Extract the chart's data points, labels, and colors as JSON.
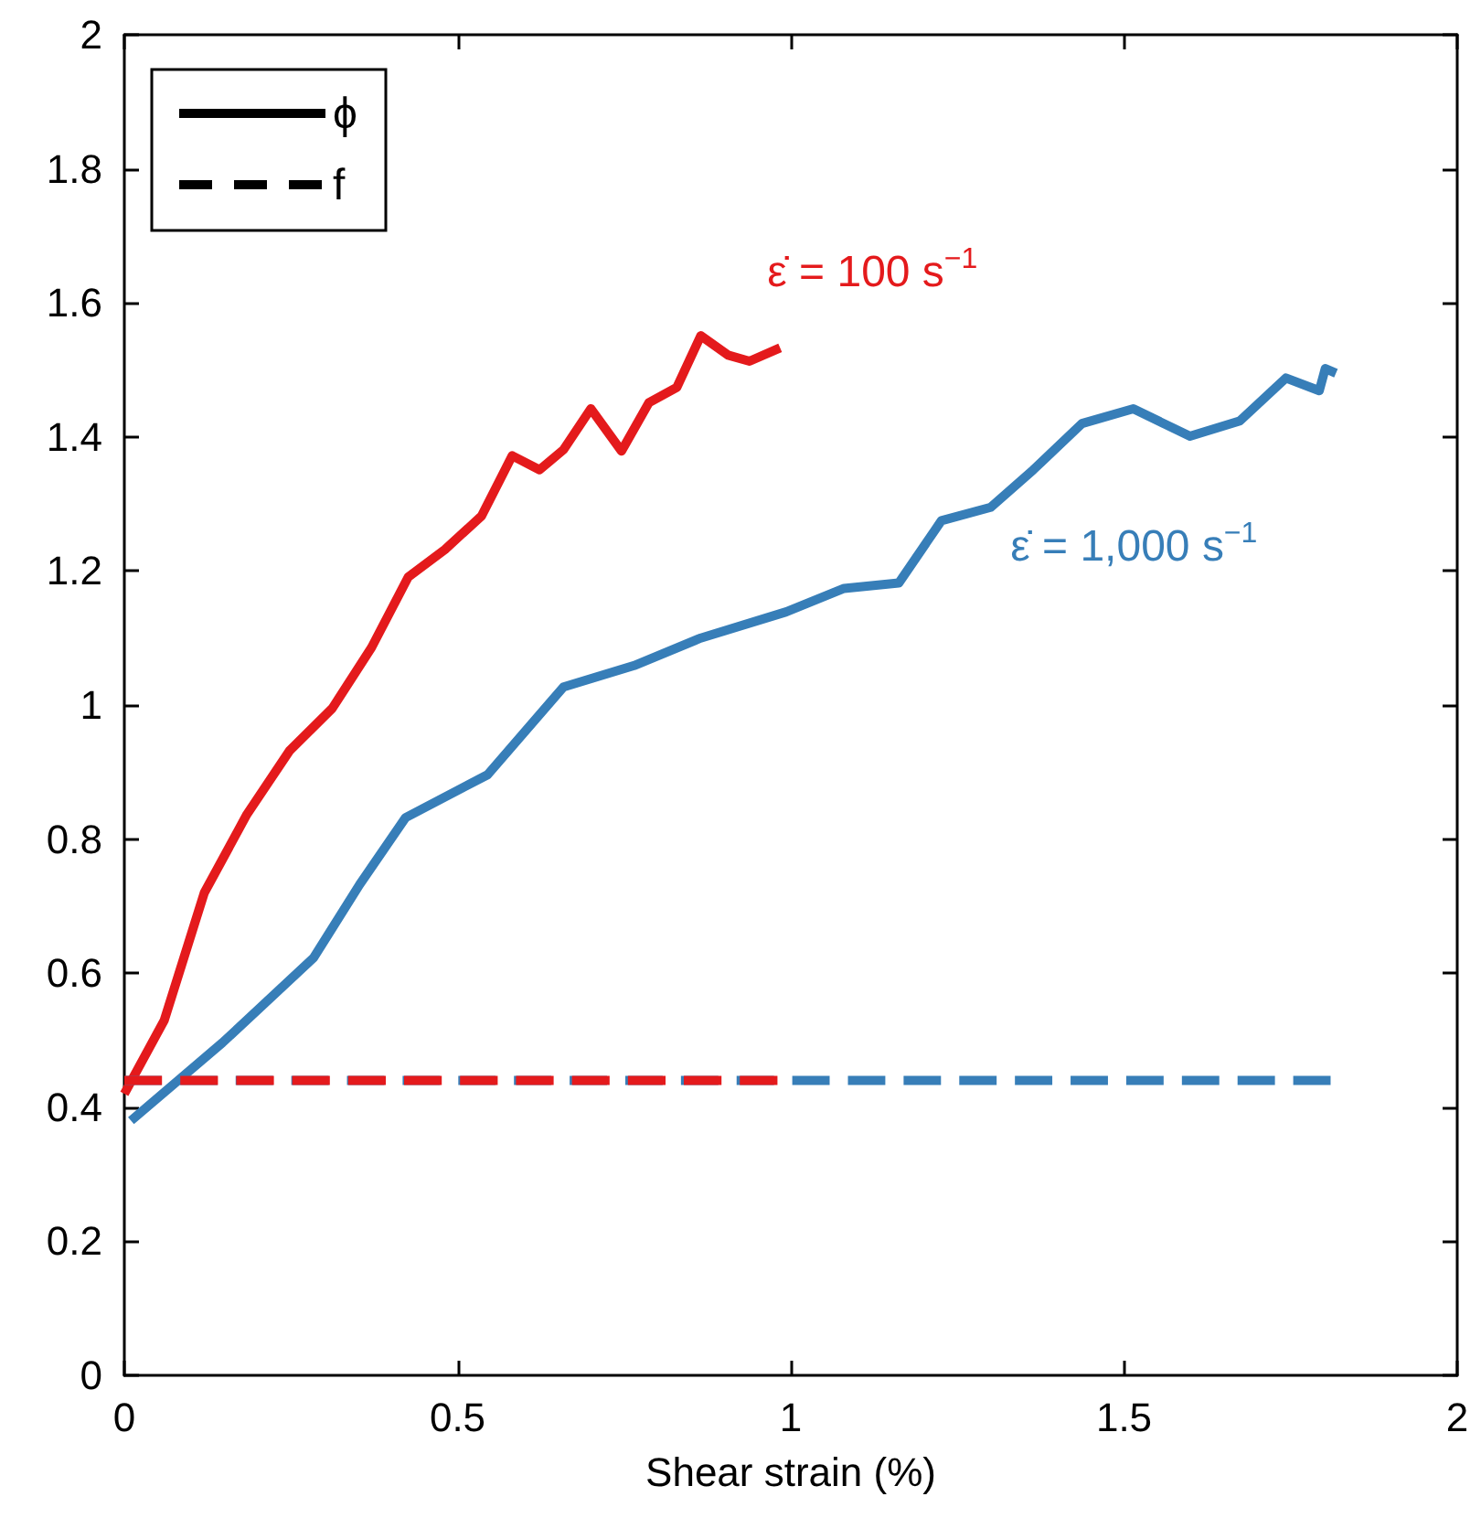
{
  "chart_data": {
    "type": "line",
    "xlabel": "Shear strain (%)",
    "xlim": [
      0,
      2
    ],
    "xticks": [
      0,
      0.5,
      1,
      1.5,
      2
    ],
    "ylim": [
      0,
      2
    ],
    "yticks": [
      0,
      0.2,
      0.4,
      0.6,
      0.8,
      1,
      1.2,
      1.4,
      1.6,
      1.8,
      2
    ],
    "grid": false,
    "marker": "none",
    "series": [
      {
        "name": "ε̇ = 100 s$^{−1}$",
        "color": "#e41a1c",
        "line_style": "solid",
        "x": [
          0,
          0.06,
          0.12,
          0.184,
          0.248,
          0.312,
          0.371,
          0.426,
          0.481,
          0.536,
          0.582,
          0.623,
          0.659,
          0.7,
          0.746,
          0.787,
          0.829,
          0.865,
          0.906,
          0.938,
          0.984
        ],
        "values": [
          0.42,
          0.53,
          0.72,
          0.837,
          0.932,
          0.995,
          1.086,
          1.191,
          1.232,
          1.282,
          1.372,
          1.351,
          1.381,
          1.442,
          1.379,
          1.451,
          1.474,
          1.551,
          1.522,
          1.513,
          1.533
        ]
      },
      {
        "name": "ε̇ = 1,000 s$^{−1}$",
        "color": "#377eb8",
        "line_style": "solid",
        "x": [
          0.01,
          0.147,
          0.284,
          0.353,
          0.422,
          0.545,
          0.659,
          0.765,
          0.865,
          0.993,
          1.08,
          1.162,
          1.226,
          1.3,
          1.364,
          1.437,
          1.514,
          1.599,
          1.674,
          1.743,
          1.793,
          1.802,
          1.818
        ],
        "values": [
          0.38,
          0.496,
          0.623,
          0.732,
          0.832,
          0.896,
          1.027,
          1.059,
          1.1,
          1.139,
          1.174,
          1.182,
          1.275,
          1.295,
          1.351,
          1.42,
          1.442,
          1.401,
          1.424,
          1.488,
          1.469,
          1.502,
          1.495
        ]
      },
      {
        "color": "#377eb8",
        "line_style": "dashed",
        "x": [
          0,
          1.81
        ],
        "values": [
          0.44,
          0.44
        ]
      },
      {
        "color": "#e41a1c",
        "line_style": "dashed",
        "x": [
          0,
          0.98
        ],
        "values": [
          0.44,
          0.44
        ]
      }
    ],
    "annotations": [
      "ϕ",
      "f"
    ]
  }
}
